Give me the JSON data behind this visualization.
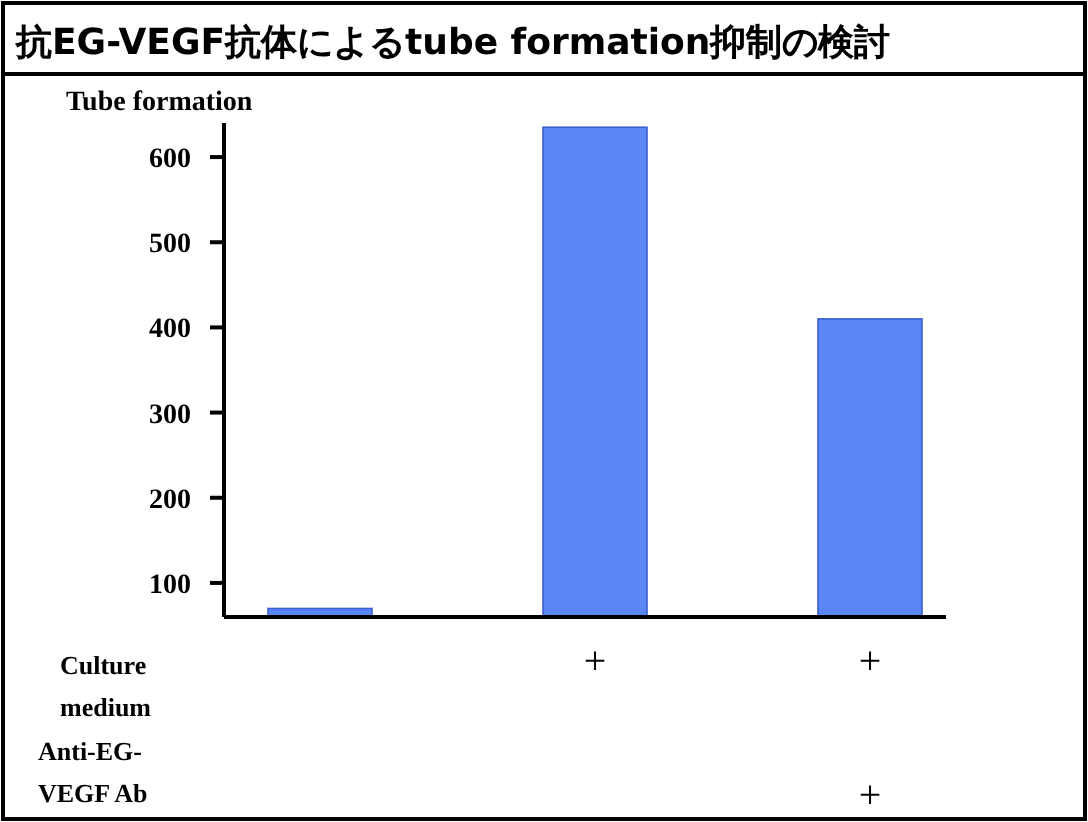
{
  "chart_data": {
    "type": "bar",
    "title": "抗EG-VEGF抗体によるtube formation抑制の検討",
    "ylabel": "Tube formation",
    "categories": [
      null,
      null,
      null
    ],
    "values": [
      70,
      635,
      410
    ],
    "color": "#5b86f5",
    "ylim": [
      60,
      640
    ],
    "yticks": [
      100,
      200,
      300,
      400,
      500,
      600
    ],
    "annotations": [
      "Culture medium",
      "+",
      "+",
      "Anti-EG-VEGF Ab",
      "+"
    ]
  }
}
